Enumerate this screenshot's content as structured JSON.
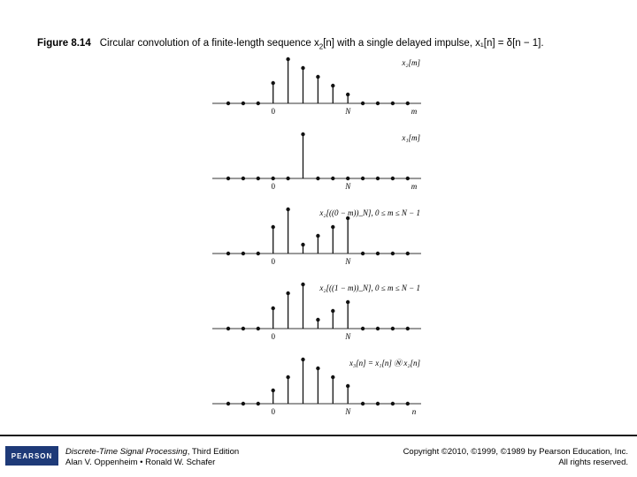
{
  "caption": {
    "figure_number": "Figure 8.14",
    "text_before": "Circular convolution of a finite-length sequence x",
    "text_sub": "2",
    "text_after": "[n] with a single delayed impulse, x₁[n] = δ[n − 1]."
  },
  "panels": [
    {
      "label": "x₂[m]",
      "origin_label": "0",
      "n_label": "N",
      "axis_label": "m",
      "values": [
        0,
        0,
        0,
        0.46,
        1.0,
        0.8,
        0.6,
        0.4,
        0.2,
        0,
        0,
        0,
        0
      ]
    },
    {
      "label": "x₁[m]",
      "origin_label": "0",
      "n_label": "N",
      "axis_label": "m",
      "values": [
        0,
        0,
        0,
        0,
        0,
        1.0,
        0,
        0,
        0,
        0,
        0,
        0,
        0
      ]
    },
    {
      "label": "x₂[((0 − m))_N], 0 ≤ m ≤ N − 1",
      "origin_label": "0",
      "n_label": "N",
      "axis_label": "",
      "values": [
        0,
        0,
        0,
        0.6,
        1.0,
        0.2,
        0.4,
        0.6,
        0.8,
        0,
        0,
        0,
        0
      ]
    },
    {
      "label": "x₂[((1 − m))_N], 0 ≤ m ≤ N − 1",
      "origin_label": "0",
      "n_label": "N",
      "axis_label": "",
      "values": [
        0,
        0,
        0,
        0.46,
        0.8,
        1.0,
        0.2,
        0.4,
        0.6,
        0,
        0,
        0,
        0
      ]
    },
    {
      "label": "x₃[n] = x₁[n] Ⓝ x₂[n]",
      "origin_label": "0",
      "n_label": "N",
      "axis_label": "n",
      "values": [
        0,
        0,
        0,
        0.3,
        0.6,
        1.0,
        0.8,
        0.6,
        0.4,
        0,
        0,
        0,
        0
      ]
    }
  ],
  "footer": {
    "logo_text": "PEARSON",
    "book_title": "Discrete-Time Signal Processing",
    "book_edition": ", Third Edition",
    "authors": "Alan V. Oppenheim • Ronald W. Schafer",
    "copyright_line1": "Copyright ©2010, ©1999, ©1989 by Pearson Education, Inc.",
    "copyright_line2": "All rights reserved."
  }
}
